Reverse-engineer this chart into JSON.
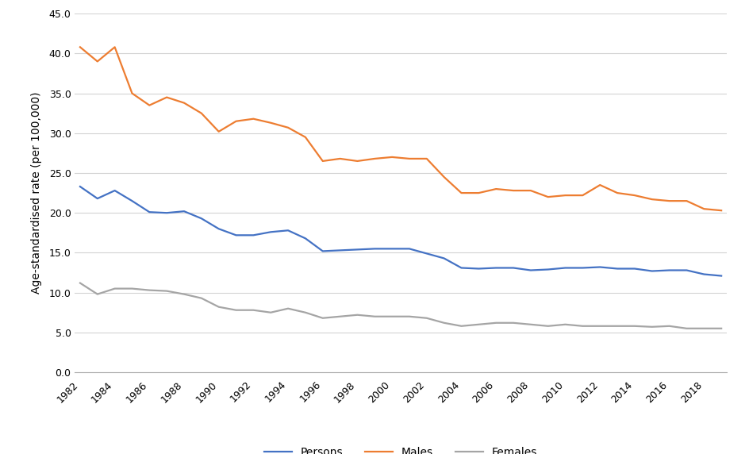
{
  "years": [
    1982,
    1983,
    1984,
    1985,
    1986,
    1987,
    1988,
    1989,
    1990,
    1991,
    1992,
    1993,
    1994,
    1995,
    1996,
    1997,
    1998,
    1999,
    2000,
    2001,
    2002,
    2003,
    2004,
    2005,
    2006,
    2007,
    2008,
    2009,
    2010,
    2011,
    2012,
    2013,
    2014,
    2015,
    2016,
    2017,
    2018,
    2019
  ],
  "persons": [
    23.3,
    21.8,
    22.8,
    21.5,
    20.1,
    20.0,
    20.2,
    19.3,
    18.0,
    17.2,
    17.2,
    17.6,
    17.8,
    16.8,
    15.2,
    15.3,
    15.4,
    15.5,
    15.5,
    15.5,
    14.9,
    14.3,
    13.1,
    13.0,
    13.1,
    13.1,
    12.8,
    12.9,
    13.1,
    13.1,
    13.2,
    13.0,
    13.0,
    12.7,
    12.8,
    12.8,
    12.3,
    12.1
  ],
  "males": [
    40.8,
    39.0,
    40.8,
    35.0,
    33.5,
    34.5,
    33.8,
    32.5,
    30.2,
    31.5,
    31.8,
    31.3,
    30.7,
    29.5,
    26.5,
    26.8,
    26.5,
    26.8,
    27.0,
    26.8,
    26.8,
    24.5,
    22.5,
    22.5,
    23.0,
    22.8,
    22.8,
    22.0,
    22.2,
    22.2,
    23.5,
    22.5,
    22.2,
    21.7,
    21.5,
    21.5,
    20.5,
    20.3
  ],
  "females": [
    11.2,
    9.8,
    10.5,
    10.5,
    10.3,
    10.2,
    9.8,
    9.3,
    8.2,
    7.8,
    7.8,
    7.5,
    8.0,
    7.5,
    6.8,
    7.0,
    7.2,
    7.0,
    7.0,
    7.0,
    6.8,
    6.2,
    5.8,
    6.0,
    6.2,
    6.2,
    6.0,
    5.8,
    6.0,
    5.8,
    5.8,
    5.8,
    5.8,
    5.7,
    5.8,
    5.5,
    5.5,
    5.5
  ],
  "persons_color": "#4472C4",
  "males_color": "#ED7D31",
  "females_color": "#A5A5A5",
  "ylabel": "Age-standardised rate (per 100,000)",
  "ylim": [
    0.0,
    45.0
  ],
  "yticks": [
    0.0,
    5.0,
    10.0,
    15.0,
    20.0,
    25.0,
    30.0,
    35.0,
    40.0,
    45.0
  ],
  "legend_labels": [
    "Persons",
    "Males",
    "Females"
  ],
  "bg_color": "#ffffff",
  "grid_color": "#d3d3d3",
  "line_width": 1.6
}
